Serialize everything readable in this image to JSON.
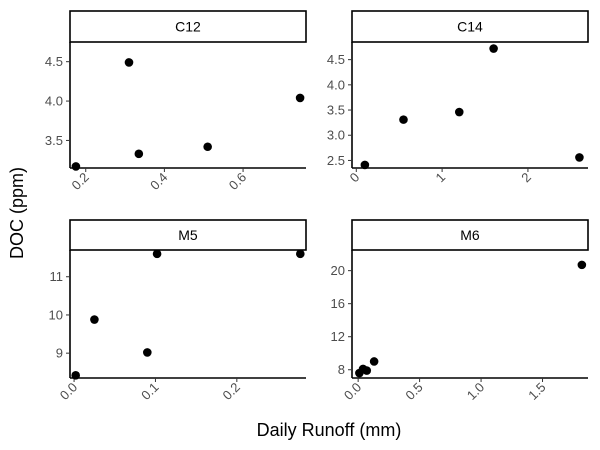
{
  "chart_data": {
    "type": "scatter",
    "xlabel": "Daily Runoff (mm)",
    "ylabel": "DOC (ppm)",
    "panels": [
      {
        "name": "C12",
        "xlim": [
          0.16,
          0.76
        ],
        "ylim": [
          3.15,
          4.75
        ],
        "xticks": [
          0.2,
          0.4,
          0.6
        ],
        "xtick_labels": [
          "0.2",
          "0.4",
          "0.6"
        ],
        "yticks": [
          3.5,
          4.0,
          4.5
        ],
        "ytick_labels": [
          "3.5",
          "4.0",
          "4.5"
        ],
        "points": [
          {
            "x": 0.175,
            "y": 3.17
          },
          {
            "x": 0.31,
            "y": 4.49
          },
          {
            "x": 0.335,
            "y": 3.33
          },
          {
            "x": 0.51,
            "y": 3.42
          },
          {
            "x": 0.745,
            "y": 4.04
          }
        ]
      },
      {
        "name": "C14",
        "xlim": [
          -0.05,
          2.7
        ],
        "ylim": [
          2.35,
          4.85
        ],
        "xticks": [
          0,
          1,
          2
        ],
        "xtick_labels": [
          "0",
          "1",
          "2"
        ],
        "yticks": [
          2.5,
          3.0,
          3.5,
          4.0,
          4.5
        ],
        "ytick_labels": [
          "2.5",
          "3.0",
          "3.5",
          "4.0",
          "4.5"
        ],
        "points": [
          {
            "x": 0.1,
            "y": 2.41
          },
          {
            "x": 0.55,
            "y": 3.31
          },
          {
            "x": 1.2,
            "y": 3.46
          },
          {
            "x": 1.6,
            "y": 4.72
          },
          {
            "x": 2.6,
            "y": 2.56
          }
        ]
      },
      {
        "name": "M5",
        "xlim": [
          -0.005,
          0.285
        ],
        "ylim": [
          8.35,
          11.7
        ],
        "xticks": [
          0.0,
          0.1,
          0.2
        ],
        "xtick_labels": [
          "0.0",
          "0.1",
          "0.2"
        ],
        "yticks": [
          9,
          10,
          11
        ],
        "ytick_labels": [
          "9",
          "10",
          "11"
        ],
        "points": [
          {
            "x": 0.002,
            "y": 8.42
          },
          {
            "x": 0.025,
            "y": 9.88
          },
          {
            "x": 0.09,
            "y": 9.02
          },
          {
            "x": 0.102,
            "y": 11.6
          },
          {
            "x": 0.278,
            "y": 11.6
          }
        ]
      },
      {
        "name": "M6",
        "xlim": [
          -0.05,
          1.87
        ],
        "ylim": [
          7.0,
          22.5
        ],
        "xticks": [
          0.0,
          0.5,
          1.0,
          1.5
        ],
        "xtick_labels": [
          "0.0",
          "0.5",
          "1.0",
          "1.5"
        ],
        "yticks": [
          8,
          12,
          16,
          20
        ],
        "ytick_labels": [
          "8",
          "12",
          "16",
          "20"
        ],
        "points": [
          {
            "x": 0.01,
            "y": 7.6
          },
          {
            "x": 0.04,
            "y": 8.1
          },
          {
            "x": 0.07,
            "y": 7.9
          },
          {
            "x": 0.13,
            "y": 9.0
          },
          {
            "x": 1.82,
            "y": 20.7
          }
        ]
      }
    ]
  }
}
